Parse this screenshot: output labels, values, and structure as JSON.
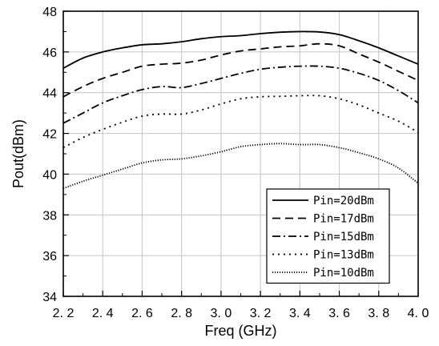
{
  "chart_data": {
    "type": "line",
    "title": "",
    "xlabel": "Freq (GHz)",
    "ylabel": "Pout(dBm)",
    "xlim": [
      2.2,
      4.0
    ],
    "ylim": [
      34,
      48
    ],
    "x_ticks": [
      2.2,
      2.4,
      2.6,
      2.8,
      3.0,
      3.2,
      3.4,
      3.6,
      3.8,
      4.0
    ],
    "x_tick_labels": [
      "2. 2",
      "2. 4",
      "2. 6",
      "2. 8",
      "3. 0",
      "3. 2",
      "3. 4",
      "3. 6",
      "3. 8",
      "4. 0"
    ],
    "y_ticks": [
      34,
      36,
      38,
      40,
      42,
      44,
      46,
      48
    ],
    "y_tick_labels": [
      "34",
      "36",
      "38",
      "40",
      "42",
      "44",
      "46",
      "48"
    ],
    "grid": true,
    "legend_position": "bottom-right",
    "x": [
      2.2,
      2.3,
      2.4,
      2.5,
      2.6,
      2.7,
      2.8,
      2.9,
      3.0,
      3.1,
      3.2,
      3.3,
      3.4,
      3.5,
      3.6,
      3.7,
      3.8,
      3.9,
      4.0
    ],
    "series": [
      {
        "name": "Pin=20dBm",
        "dash": "solid",
        "values": [
          45.2,
          45.7,
          46.0,
          46.2,
          46.35,
          46.4,
          46.5,
          46.65,
          46.75,
          46.8,
          46.9,
          46.97,
          47.0,
          46.98,
          46.85,
          46.55,
          46.2,
          45.8,
          45.4
        ]
      },
      {
        "name": "Pin=17dBm",
        "dash": "dash",
        "values": [
          43.8,
          44.3,
          44.7,
          45.0,
          45.3,
          45.4,
          45.45,
          45.6,
          45.85,
          46.05,
          46.15,
          46.25,
          46.3,
          46.4,
          46.3,
          45.9,
          45.5,
          45.05,
          44.6
        ]
      },
      {
        "name": "Pin=15dBm",
        "dash": "dashdot",
        "values": [
          42.5,
          43.0,
          43.5,
          43.85,
          44.15,
          44.3,
          44.25,
          44.45,
          44.7,
          44.95,
          45.15,
          45.25,
          45.3,
          45.3,
          45.2,
          44.95,
          44.6,
          44.1,
          43.5
        ]
      },
      {
        "name": "Pin=13dBm",
        "dash": "dot",
        "values": [
          41.3,
          41.8,
          42.2,
          42.55,
          42.85,
          42.95,
          42.95,
          43.15,
          43.45,
          43.7,
          43.8,
          43.82,
          43.85,
          43.85,
          43.7,
          43.4,
          43.0,
          42.6,
          42.05
        ]
      },
      {
        "name": "Pin=10dBm",
        "dash": "densedot",
        "values": [
          39.3,
          39.65,
          39.95,
          40.25,
          40.55,
          40.7,
          40.75,
          40.9,
          41.1,
          41.35,
          41.45,
          41.5,
          41.45,
          41.45,
          41.3,
          41.05,
          40.75,
          40.3,
          39.55
        ]
      }
    ]
  }
}
